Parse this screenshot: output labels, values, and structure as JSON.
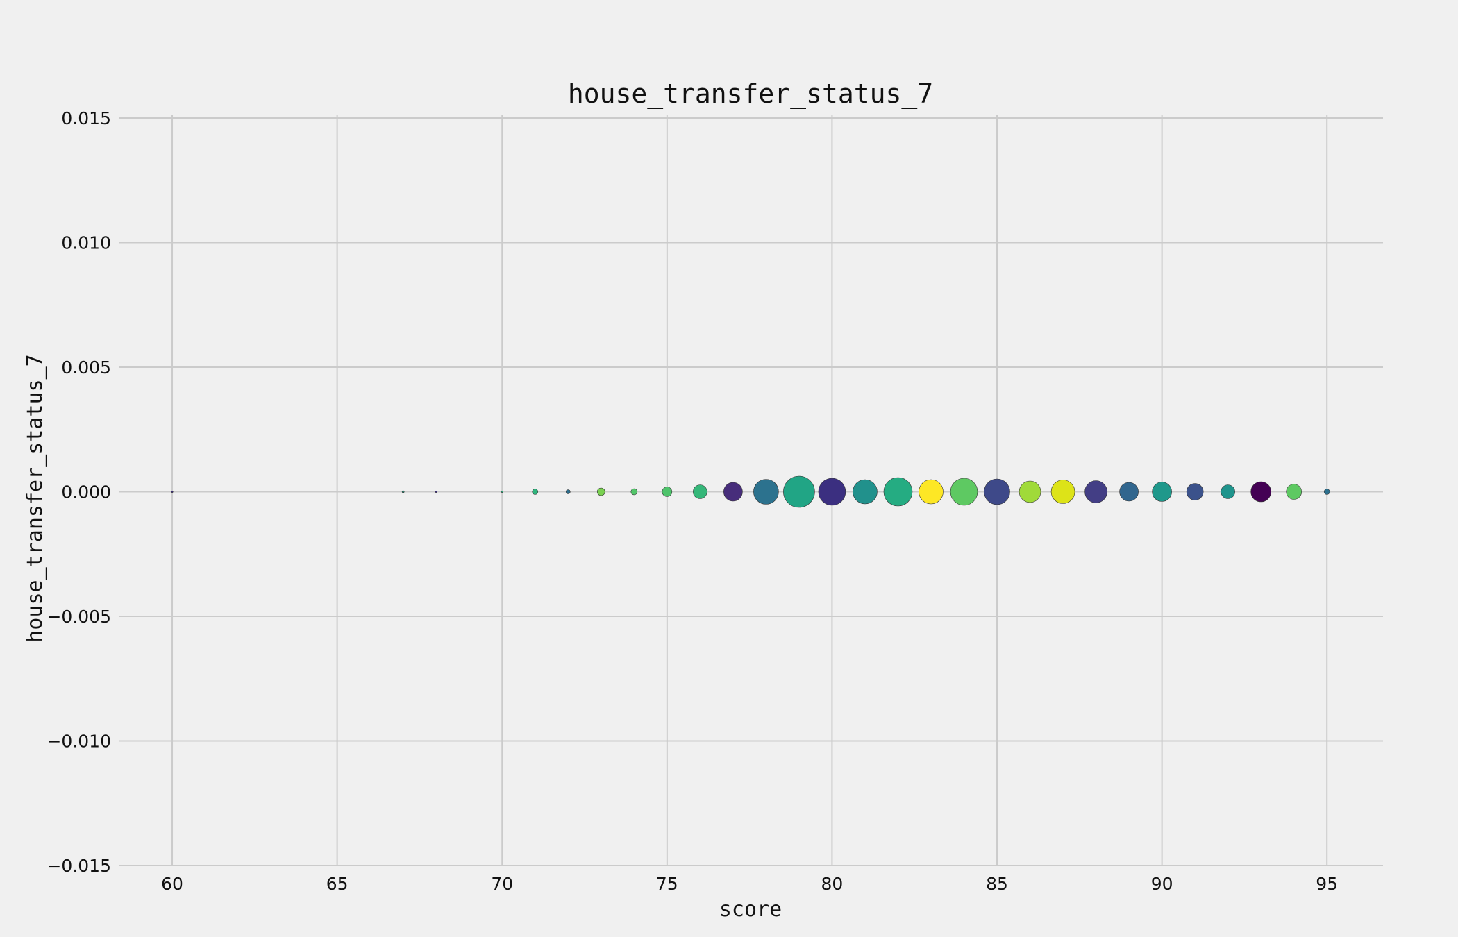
{
  "chart_data": {
    "type": "scatter",
    "title": "house_transfer_status_7",
    "xlabel": "score",
    "ylabel": "house_transfer_status_7",
    "xlim": [
      58.4,
      96.7
    ],
    "ylim": [
      -0.015,
      0.015
    ],
    "xticks": [
      60,
      65,
      70,
      75,
      80,
      85,
      90,
      95
    ],
    "xtick_labels": [
      "60",
      "65",
      "70",
      "75",
      "80",
      "85",
      "90",
      "95"
    ],
    "yticks": [
      0.015,
      0.01,
      0.005,
      0.0,
      -0.005,
      -0.01,
      -0.015
    ],
    "ytick_labels": [
      "0.015",
      "0.010",
      "0.005",
      "0.000",
      "−0.005",
      "−0.010",
      "−0.015"
    ],
    "grid": true,
    "points": [
      {
        "x": 60,
        "y": 0,
        "size": 2,
        "color": "#3b2a84"
      },
      {
        "x": 67,
        "y": 0,
        "size": 3,
        "color": "#2a9a82"
      },
      {
        "x": 68,
        "y": 0,
        "size": 2,
        "color": "#3b2a84"
      },
      {
        "x": 70,
        "y": 0,
        "size": 2,
        "color": "#2ab07f"
      },
      {
        "x": 71,
        "y": 0,
        "size": 8,
        "color": "#2fb47c"
      },
      {
        "x": 72,
        "y": 0,
        "size": 6,
        "color": "#2c6e8e"
      },
      {
        "x": 73,
        "y": 0,
        "size": 11,
        "color": "#7ad151"
      },
      {
        "x": 74,
        "y": 0,
        "size": 9,
        "color": "#52c569"
      },
      {
        "x": 75,
        "y": 0,
        "size": 14,
        "color": "#4ec36b"
      },
      {
        "x": 76,
        "y": 0,
        "size": 20,
        "color": "#35b779"
      },
      {
        "x": 77,
        "y": 0,
        "size": 27,
        "color": "#472d7b"
      },
      {
        "x": 78,
        "y": 0,
        "size": 36,
        "color": "#2c728e"
      },
      {
        "x": 79,
        "y": 0,
        "size": 45,
        "color": "#21a585"
      },
      {
        "x": 80,
        "y": 0,
        "size": 39,
        "color": "#3b2f80"
      },
      {
        "x": 81,
        "y": 0,
        "size": 35,
        "color": "#21918c"
      },
      {
        "x": 82,
        "y": 0,
        "size": 41,
        "color": "#25ac82"
      },
      {
        "x": 83,
        "y": 0,
        "size": 35,
        "color": "#fde725"
      },
      {
        "x": 84,
        "y": 0,
        "size": 39,
        "color": "#5ec962"
      },
      {
        "x": 85,
        "y": 0,
        "size": 37,
        "color": "#3e4989"
      },
      {
        "x": 86,
        "y": 0,
        "size": 31,
        "color": "#a0da39"
      },
      {
        "x": 87,
        "y": 0,
        "size": 34,
        "color": "#dde318"
      },
      {
        "x": 88,
        "y": 0,
        "size": 32,
        "color": "#433e85"
      },
      {
        "x": 89,
        "y": 0,
        "size": 27,
        "color": "#31668e"
      },
      {
        "x": 90,
        "y": 0,
        "size": 28,
        "color": "#1f988b"
      },
      {
        "x": 91,
        "y": 0,
        "size": 24,
        "color": "#3b528b"
      },
      {
        "x": 92,
        "y": 0,
        "size": 20,
        "color": "#1f948c"
      },
      {
        "x": 93,
        "y": 0,
        "size": 29,
        "color": "#440154"
      },
      {
        "x": 94,
        "y": 0,
        "size": 22,
        "color": "#5ec962"
      },
      {
        "x": 95,
        "y": 0,
        "size": 8,
        "color": "#2d708e"
      }
    ]
  }
}
